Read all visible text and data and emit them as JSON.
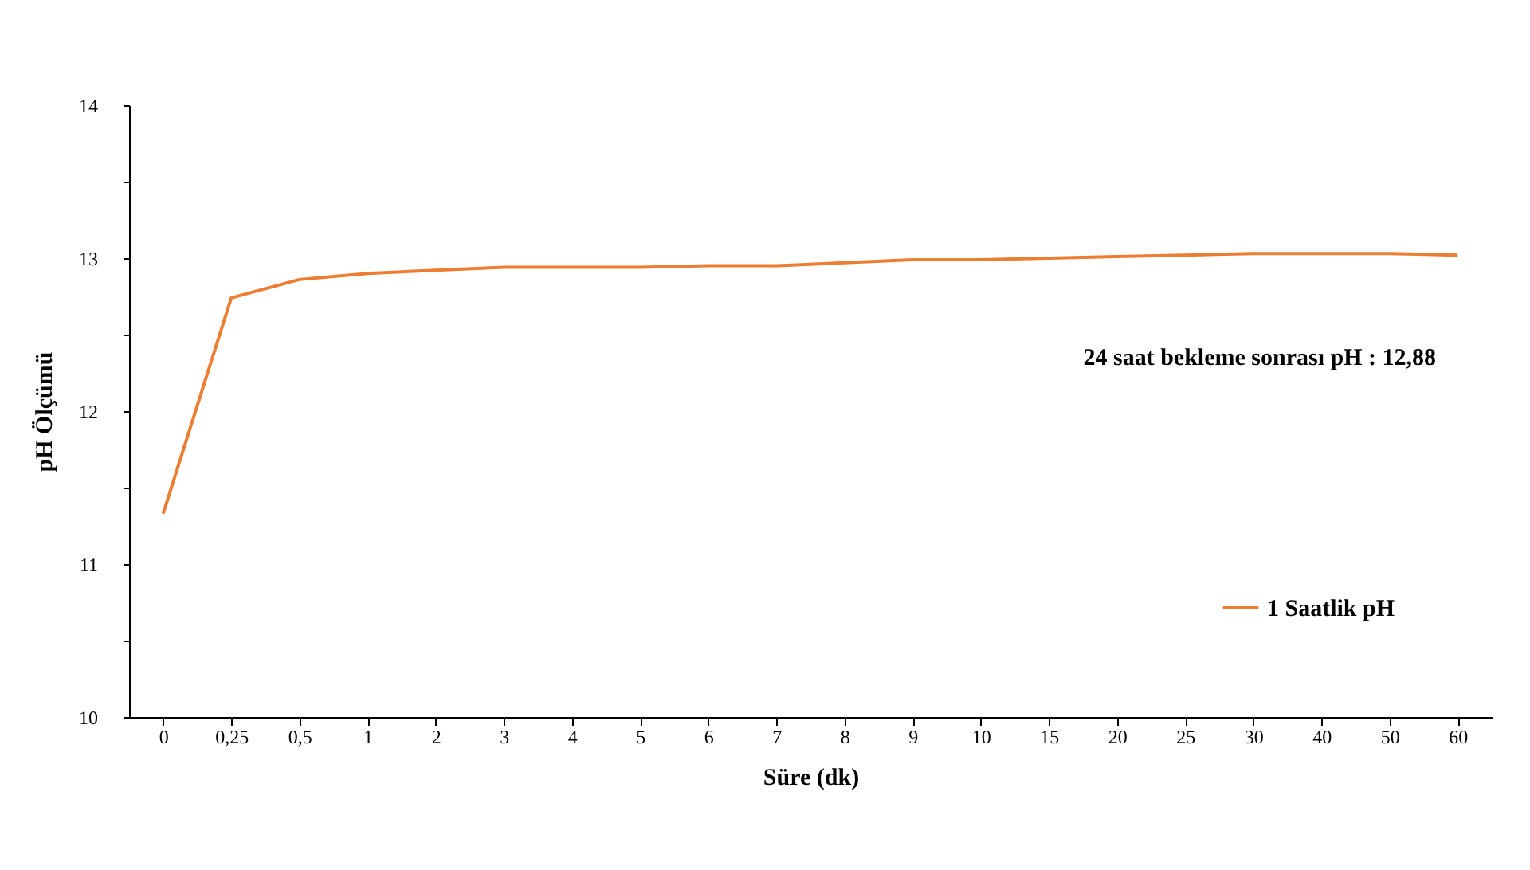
{
  "chart_data": {
    "type": "line",
    "xlabel": "Süre (dk)",
    "ylabel": "pH Ölçümü",
    "categories": [
      "0",
      "0,25",
      "0,5",
      "1",
      "2",
      "3",
      "4",
      "5",
      "6",
      "7",
      "8",
      "9",
      "10",
      "15",
      "20",
      "25",
      "30",
      "40",
      "50",
      "60"
    ],
    "series": [
      {
        "name": "1 Saatlik pH",
        "color": "#ed7d31",
        "values": [
          11.33,
          12.74,
          12.86,
          12.9,
          12.92,
          12.94,
          12.94,
          12.94,
          12.95,
          12.95,
          12.97,
          12.99,
          12.99,
          13.0,
          13.01,
          13.02,
          13.03,
          13.03,
          13.03,
          13.02
        ]
      }
    ],
    "ylim": [
      10,
      14
    ],
    "yticks": [
      10,
      {
        "value": 10.5,
        "label": null
      },
      11,
      {
        "value": 11.5,
        "label": null
      },
      12,
      {
        "value": 12.5,
        "label": null
      },
      13,
      {
        "value": 13.5,
        "label": null
      },
      14
    ],
    "annotations": [
      "24 saat bekleme sonrası  pH : 12,88"
    ],
    "grid": false,
    "legend": "bottom right",
    "marker": "none",
    "line_style": "solid"
  }
}
